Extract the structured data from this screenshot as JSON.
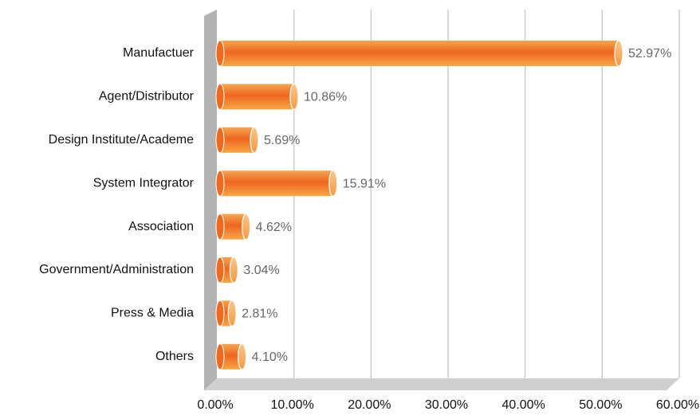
{
  "chart_data": {
    "type": "bar",
    "orientation": "horizontal",
    "categories": [
      "Manufactuer",
      "Agent/Distributor",
      "Design Institute/Academe",
      "System Integrator",
      "Association",
      "Government/Administration",
      "Press & Media",
      "Others"
    ],
    "values": [
      52.97,
      10.86,
      5.69,
      15.91,
      4.62,
      3.04,
      2.81,
      4.1
    ],
    "value_labels": [
      "52.97%",
      "10.86%",
      "5.69%",
      "15.91%",
      "4.62%",
      "3.04%",
      "2.81%",
      "4.10%"
    ],
    "color": "#ee6a1e",
    "xlim": [
      0,
      60
    ],
    "xticks": [
      {
        "value": 0,
        "label": "0.00%"
      },
      {
        "value": 10,
        "label": "10.00%"
      },
      {
        "value": 20,
        "label": "20.00%"
      },
      {
        "value": 30,
        "label": "30.00%"
      },
      {
        "value": 40,
        "label": "40.00%"
      },
      {
        "value": 50,
        "label": "50.00%"
      },
      {
        "value": 60,
        "label": "60.00%"
      }
    ],
    "grid": true
  }
}
